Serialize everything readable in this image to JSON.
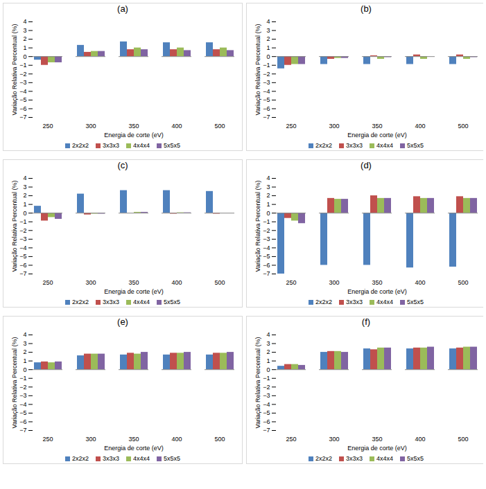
{
  "chart_data": [
    {
      "type": "bar",
      "title": "(a)",
      "x_label": "Energia de corte (eV)",
      "y_label": "Variação Relativa Percentual (%)",
      "categories": [
        "250",
        "300",
        "350",
        "400",
        "500"
      ],
      "series": [
        {
          "name": "2x2x2",
          "color": "#4f81bd",
          "values": [
            -0.4,
            1.3,
            1.7,
            1.6,
            1.6
          ]
        },
        {
          "name": "3x3x3",
          "color": "#c0504d",
          "values": [
            -1.0,
            0.5,
            0.8,
            0.8,
            0.8
          ]
        },
        {
          "name": "4x4x4",
          "color": "#9bbb59",
          "values": [
            -0.7,
            0.6,
            1.0,
            1.0,
            1.0
          ]
        },
        {
          "name": "5x5x5",
          "color": "#8064a2",
          "values": [
            -0.7,
            0.6,
            0.8,
            0.7,
            0.7
          ]
        }
      ],
      "ylim": [
        -7,
        4
      ],
      "yticks": [
        -7,
        -6,
        -5,
        -4,
        -3,
        -2,
        -1,
        0,
        1,
        2,
        3,
        4
      ],
      "grid": false,
      "legend": "bottom"
    },
    {
      "type": "bar",
      "title": "(b)",
      "x_label": "Energia de corte (eV)",
      "y_label": "Variação Relativa Percentual (%)",
      "categories": [
        "250",
        "300",
        "350",
        "400",
        "500"
      ],
      "series": [
        {
          "name": "2x2x2",
          "color": "#4f81bd",
          "values": [
            -1.4,
            -0.9,
            -0.9,
            -0.9,
            -0.9
          ]
        },
        {
          "name": "3x3x3",
          "color": "#c0504d",
          "values": [
            -1.0,
            -0.3,
            0.1,
            0.2,
            0.2
          ]
        },
        {
          "name": "4x4x4",
          "color": "#9bbb59",
          "values": [
            -0.9,
            -0.2,
            -0.3,
            -0.3,
            -0.3
          ]
        },
        {
          "name": "5x5x5",
          "color": "#8064a2",
          "values": [
            -0.9,
            -0.2,
            -0.1,
            0,
            -0.1
          ]
        }
      ],
      "ylim": [
        -7,
        4
      ],
      "yticks": [
        -7,
        -6,
        -5,
        -4,
        -3,
        -2,
        -1,
        0,
        1,
        2,
        3,
        4
      ],
      "grid": false,
      "legend": "bottom"
    },
    {
      "type": "bar",
      "title": "(c)",
      "x_label": "Energia de corte (eV)",
      "y_label": "Variação Relativa Percentual (%)",
      "categories": [
        "250",
        "300",
        "350",
        "400",
        "500"
      ],
      "series": [
        {
          "name": "2x2x2",
          "color": "#4f81bd",
          "values": [
            0.8,
            2.2,
            2.6,
            2.6,
            2.5
          ]
        },
        {
          "name": "3x3x3",
          "color": "#c0504d",
          "values": [
            -0.9,
            -0.2,
            0,
            -0.1,
            -0.1
          ]
        },
        {
          "name": "4x4x4",
          "color": "#9bbb59",
          "values": [
            -0.5,
            -0.1,
            0.1,
            0.05,
            0
          ]
        },
        {
          "name": "5x5x5",
          "color": "#8064a2",
          "values": [
            -0.7,
            -0.1,
            0.1,
            0.05,
            0
          ]
        }
      ],
      "ylim": [
        -7,
        4
      ],
      "yticks": [
        -7,
        -6,
        -5,
        -4,
        -3,
        -2,
        -1,
        0,
        1,
        2,
        3,
        4
      ],
      "grid": false,
      "legend": "bottom"
    },
    {
      "type": "bar",
      "title": "(d)",
      "x_label": "Energia de corte (eV)",
      "y_label": "Variação Relativa Percentual (%)",
      "categories": [
        "250",
        "300",
        "350",
        "400",
        "500"
      ],
      "series": [
        {
          "name": "2x2x2",
          "color": "#4f81bd",
          "values": [
            -7.0,
            -6.0,
            -6.0,
            -6.3,
            -6.2
          ]
        },
        {
          "name": "3x3x3",
          "color": "#c0504d",
          "values": [
            -0.6,
            1.7,
            2.0,
            1.9,
            1.9
          ]
        },
        {
          "name": "4x4x4",
          "color": "#9bbb59",
          "values": [
            -0.9,
            1.6,
            1.7,
            1.7,
            1.7
          ]
        },
        {
          "name": "5x5x5",
          "color": "#8064a2",
          "values": [
            -1.2,
            1.6,
            1.7,
            1.7,
            1.7
          ]
        }
      ],
      "ylim": [
        -7,
        4
      ],
      "yticks": [
        -7,
        -6,
        -5,
        -4,
        -3,
        -2,
        -1,
        0,
        1,
        2,
        3,
        4
      ],
      "grid": false,
      "legend": "bottom"
    },
    {
      "type": "bar",
      "title": "(e)",
      "x_label": "Energia de corte (eV)",
      "y_label": "Variação Relativa Percentual (%)",
      "categories": [
        "250",
        "300",
        "350",
        "400",
        "500"
      ],
      "series": [
        {
          "name": "2x2x2",
          "color": "#4f81bd",
          "values": [
            0.8,
            1.6,
            1.7,
            1.7,
            1.7
          ]
        },
        {
          "name": "3x3x3",
          "color": "#c0504d",
          "values": [
            0.9,
            1.8,
            1.9,
            1.9,
            1.9
          ]
        },
        {
          "name": "4x4x4",
          "color": "#9bbb59",
          "values": [
            0.8,
            1.8,
            1.8,
            1.9,
            1.9
          ]
        },
        {
          "name": "5x5x5",
          "color": "#8064a2",
          "values": [
            0.9,
            1.8,
            2.0,
            2.0,
            2.0
          ]
        }
      ],
      "ylim": [
        -7,
        4
      ],
      "yticks": [
        -7,
        -6,
        -5,
        -4,
        -3,
        -2,
        -1,
        0,
        1,
        2,
        3,
        4
      ],
      "grid": false,
      "legend": "bottom"
    },
    {
      "type": "bar",
      "title": "(f)",
      "x_label": "Energia de corte (eV)",
      "y_label": "Variação Relativa Percentual (%)",
      "categories": [
        "250",
        "300",
        "350",
        "400",
        "500"
      ],
      "series": [
        {
          "name": "2x2x2",
          "color": "#4f81bd",
          "values": [
            0.4,
            2.0,
            2.4,
            2.4,
            2.4
          ]
        },
        {
          "name": "3x3x3",
          "color": "#c0504d",
          "values": [
            0.6,
            2.1,
            2.3,
            2.5,
            2.5
          ]
        },
        {
          "name": "4x4x4",
          "color": "#9bbb59",
          "values": [
            0.6,
            2.1,
            2.5,
            2.5,
            2.6
          ]
        },
        {
          "name": "5x5x5",
          "color": "#8064a2",
          "values": [
            0.5,
            2.0,
            2.5,
            2.6,
            2.6
          ]
        }
      ],
      "ylim": [
        -7,
        4
      ],
      "yticks": [
        -7,
        -6,
        -5,
        -4,
        -3,
        -2,
        -1,
        0,
        1,
        2,
        3,
        4
      ],
      "grid": false,
      "legend": "bottom"
    }
  ]
}
